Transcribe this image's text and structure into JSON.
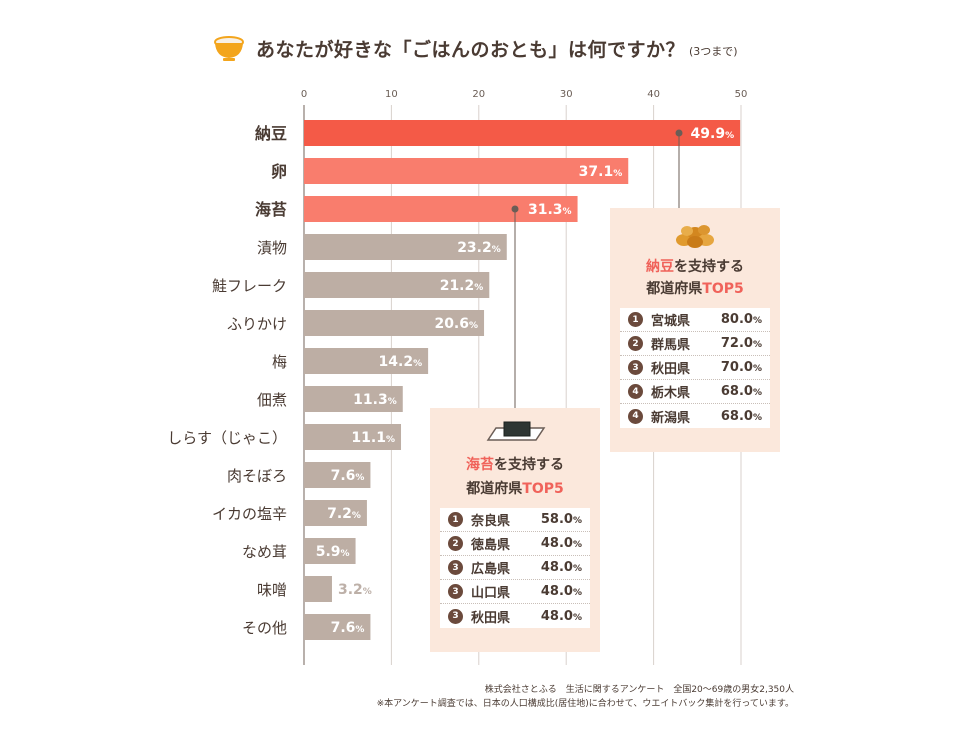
{
  "header": {
    "title": "あなたが好きな「ごはんのおとも」は何ですか？",
    "note": "(3つまで)",
    "icon": "rice-bowl-icon"
  },
  "colors": {
    "top1": "#f45a47",
    "top2_3": "#f97d6d",
    "other": "#bdaea4",
    "panel_bg": "#fbe8dc",
    "highlight": "#f0625a",
    "grid": "#d9d1cc"
  },
  "chart_data": {
    "type": "bar",
    "orientation": "horizontal",
    "categories": [
      "納豆",
      "卵",
      "海苔",
      "漬物",
      "鮭フレーク",
      "ふりかけ",
      "梅",
      "佃煮",
      "しらす（じゃこ）",
      "肉そぼろ",
      "イカの塩辛",
      "なめ茸",
      "味噌",
      "その他"
    ],
    "values": [
      49.9,
      37.1,
      31.3,
      23.2,
      21.2,
      20.6,
      14.2,
      11.3,
      11.1,
      7.6,
      7.2,
      5.9,
      3.2,
      7.6
    ],
    "value_unit": "%",
    "xticks": [
      "0",
      "10",
      "20",
      "30",
      "40",
      "50"
    ],
    "xlim": [
      0,
      50
    ],
    "grid": true,
    "highlighted_top": 3
  },
  "panel_natto": {
    "icon": "natto-icon",
    "head_highlight": "納豆",
    "head_rest": "を支持する",
    "sub_rest": "都道府県",
    "sub_highlight": "TOP5",
    "rows": [
      {
        "rank": "1",
        "pref": "宮城県",
        "value": "80.0",
        "unit": "%"
      },
      {
        "rank": "2",
        "pref": "群馬県",
        "value": "72.0",
        "unit": "%"
      },
      {
        "rank": "3",
        "pref": "秋田県",
        "value": "70.0",
        "unit": "%"
      },
      {
        "rank": "4",
        "pref": "栃木県",
        "value": "68.0",
        "unit": "%"
      },
      {
        "rank": "4",
        "pref": "新潟県",
        "value": "68.0",
        "unit": "%"
      }
    ]
  },
  "panel_nori": {
    "icon": "nori-icon",
    "head_highlight": "海苔",
    "head_rest": "を支持する",
    "sub_rest": "都道府県",
    "sub_highlight": "TOP5",
    "rows": [
      {
        "rank": "1",
        "pref": "奈良県",
        "value": "58.0",
        "unit": "%"
      },
      {
        "rank": "2",
        "pref": "徳島県",
        "value": "48.0",
        "unit": "%"
      },
      {
        "rank": "3",
        "pref": "広島県",
        "value": "48.0",
        "unit": "%"
      },
      {
        "rank": "3",
        "pref": "山口県",
        "value": "48.0",
        "unit": "%"
      },
      {
        "rank": "3",
        "pref": "秋田県",
        "value": "48.0",
        "unit": "%"
      }
    ]
  },
  "footer": {
    "line1": "株式会社さとふる　生活に関するアンケート　全国20～69歳の男女2,350人",
    "line2": "※本アンケート調査では、日本の人口構成比(居住地)に合わせて、ウエイトバック集計を行っています。"
  }
}
